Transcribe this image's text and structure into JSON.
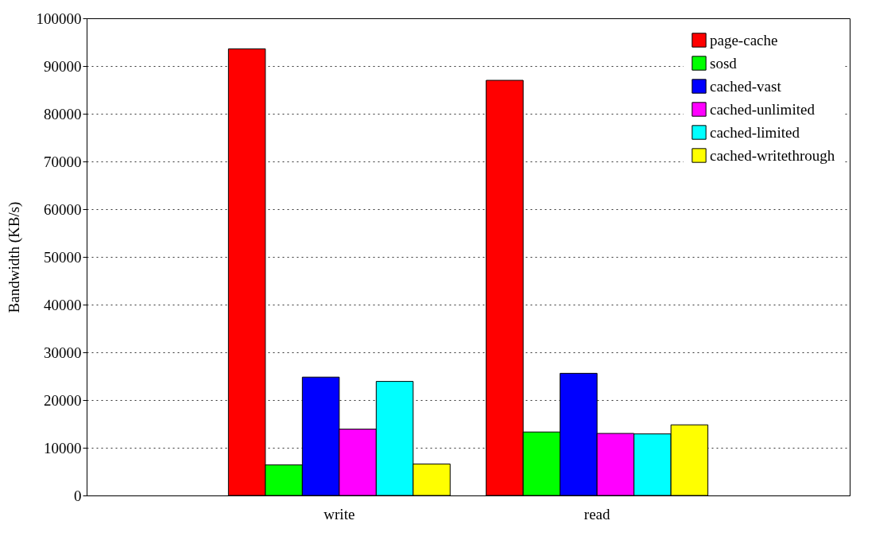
{
  "chart_data": {
    "type": "bar",
    "ylabel": "Bandwidth (KB/s)",
    "categories": [
      "write",
      "read"
    ],
    "series": [
      {
        "name": "page-cache",
        "color": "#ff0000",
        "values": [
          93600,
          87000
        ]
      },
      {
        "name": "sosd",
        "color": "#00ff00",
        "values": [
          6400,
          13300
        ]
      },
      {
        "name": "cached-vast",
        "color": "#0000ff",
        "values": [
          24800,
          25600
        ]
      },
      {
        "name": "cached-unlimited",
        "color": "#ff00ff",
        "values": [
          13900,
          13000
        ]
      },
      {
        "name": "cached-limited",
        "color": "#00ffff",
        "values": [
          23900,
          12900
        ]
      },
      {
        "name": "cached-writethrough",
        "color": "#ffff00",
        "values": [
          6600,
          14800
        ]
      }
    ],
    "ylim": [
      0,
      100000
    ],
    "yticks": [
      0,
      10000,
      20000,
      30000,
      40000,
      50000,
      60000,
      70000,
      80000,
      90000,
      100000
    ],
    "grid": "y",
    "legend": "top right"
  }
}
